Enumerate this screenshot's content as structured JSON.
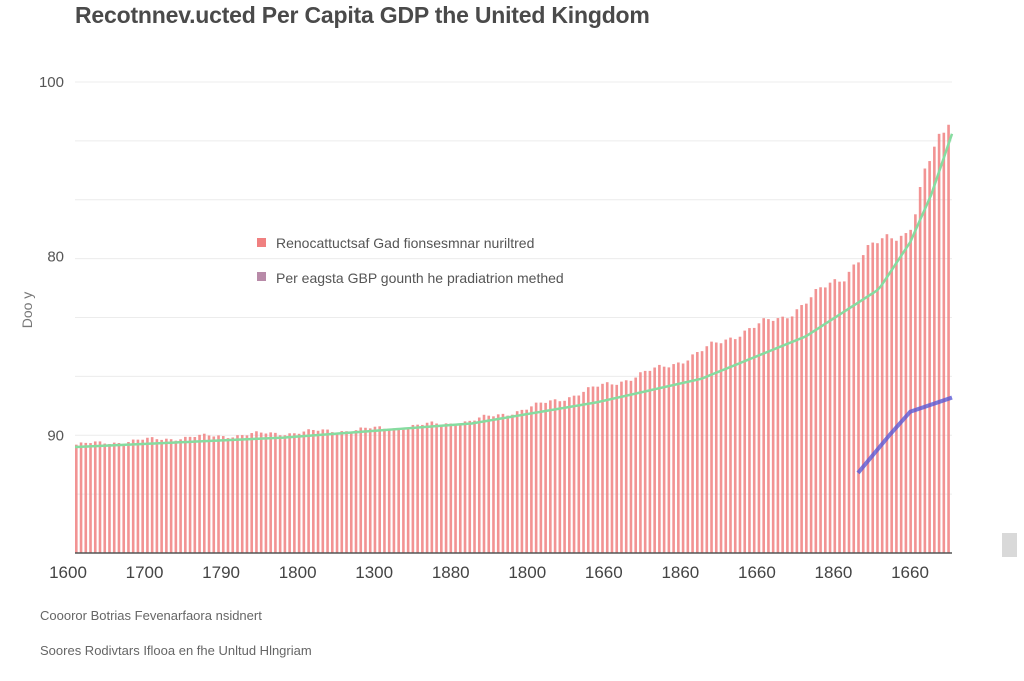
{
  "chart_data": {
    "type": "bar",
    "title": "Recotnnev.ucted Per Capita GDP the United Kingdom",
    "ylabel": "Doo y",
    "xlabel": "",
    "y_tick_labels": [
      "100",
      "80",
      "90"
    ],
    "x_tick_labels": [
      "1600",
      "1700",
      "1790",
      "1800",
      "1300",
      "1880",
      "1800",
      "1660",
      "1860",
      "1660",
      "1860",
      "1660"
    ],
    "x_range": [
      1600,
      2020
    ],
    "ylim": [
      0,
      100
    ],
    "grid": true,
    "legend_position": "center-left",
    "series": [
      {
        "name": "Renocattuctsaf Gad fionsesmnar nuriltred",
        "kind": "bar",
        "color": "#f08080",
        "x_start": 1600,
        "x_end": 2020,
        "count": 185,
        "anchors": [
          [
            1600,
            23
          ],
          [
            1650,
            24.5
          ],
          [
            1700,
            25.5
          ],
          [
            1750,
            26.5
          ],
          [
            1790,
            28
          ],
          [
            1820,
            31
          ],
          [
            1850,
            35
          ],
          [
            1880,
            39
          ],
          [
            1900,
            42.5
          ],
          [
            1920,
            47
          ],
          [
            1940,
            50
          ],
          [
            1950,
            53
          ],
          [
            1960,
            56
          ],
          [
            1970,
            59
          ],
          [
            1975,
            62
          ],
          [
            1980,
            64
          ],
          [
            1990,
            66.5
          ],
          [
            2000,
            68.5
          ],
          [
            2003,
            71
          ],
          [
            2008,
            80
          ],
          [
            2014,
            86
          ],
          [
            2018,
            89
          ],
          [
            2020,
            92
          ]
        ]
      },
      {
        "name": "Per eagsta GBP gounth he pradiatrion methed",
        "kind": "line",
        "color": "#5a5ad6",
        "points": [
          [
            1975,
            17
          ],
          [
            1990,
            25
          ],
          [
            2000,
            30
          ],
          [
            2020,
            33
          ]
        ]
      },
      {
        "name": "trend",
        "kind": "curve",
        "color": "#86dca0",
        "points": [
          [
            1600,
            22.5
          ],
          [
            1700,
            24.5
          ],
          [
            1790,
            27.5
          ],
          [
            1850,
            32
          ],
          [
            1900,
            37
          ],
          [
            1950,
            46
          ],
          [
            1985,
            56
          ],
          [
            2000,
            66
          ],
          [
            2010,
            76
          ],
          [
            2020,
            89
          ]
        ]
      }
    ]
  },
  "note": "Coooror Botrias Fevenarfaora nsidnert",
  "source": "Soores Rodivtars Iflooa en fhe Unltud Hlngriam"
}
